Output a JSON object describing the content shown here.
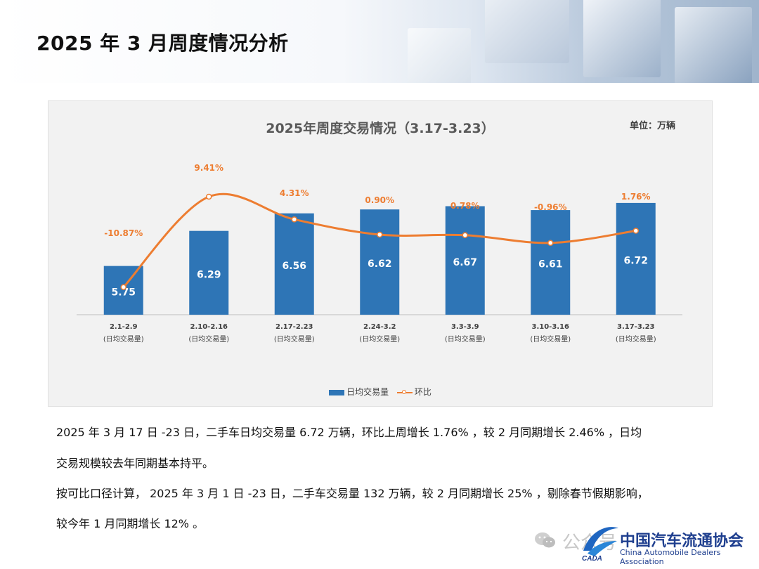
{
  "page": {
    "title": "2025 年 3 月周度情况分析",
    "paragraphs": [
      "2025 年 3 月 17 日 -23 日，二手车日均交易量 6.72 万辆，环比上周增长 1.76% ，较 2 月同期增长 2.46% ，日均",
      "交易规模较去年同期基本持平。",
      "按可比口径计算， 2025 年 3 月 1 日 -23 日，二手车交易量 132 万辆，较 2 月同期增长 25% ，剔除春节假期影响，",
      "较今年 1 月同期增长 12% 。"
    ]
  },
  "footer": {
    "watermark": "公众号",
    "org_cn": "中国汽车流通协会",
    "org_en": "China Automobile Dealers Association",
    "logo_text": "CADA"
  },
  "chart_data": {
    "type": "bar",
    "title": "2025年周度交易情况（3.17-3.23）",
    "unit_label": "单位：万辆",
    "categories": [
      "2.1-2.9",
      "2.10-2.16",
      "2.17-2.23",
      "2.24-3.2",
      "3.3-3.9",
      "3.10-3.16",
      "3.17-3.23"
    ],
    "category_sublabel": "(日均交易量)",
    "series": [
      {
        "name": "日均交易量",
        "type": "bar",
        "color": "#2e75b6",
        "values": [
          5.75,
          6.29,
          6.56,
          6.62,
          6.67,
          6.61,
          6.72
        ],
        "labels": [
          "5.75",
          "6.29",
          "6.56",
          "6.62",
          "6.67",
          "6.61",
          "6.72"
        ]
      },
      {
        "name": "环比",
        "type": "line",
        "color": "#ed7d31",
        "values": [
          -10.87,
          9.41,
          4.31,
          0.9,
          0.78,
          -0.96,
          1.76
        ],
        "labels": [
          "-10.87%",
          "9.41%",
          "4.31%",
          "0.90%",
          "0.78%",
          "-0.96%",
          "1.76%"
        ]
      }
    ],
    "legend_position": "bottom",
    "grid": false
  }
}
